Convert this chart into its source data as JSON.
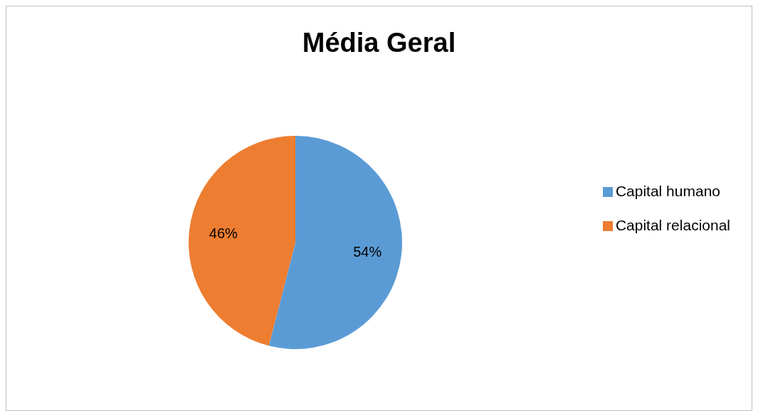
{
  "chart_data": {
    "type": "pie",
    "title": "Média Geral",
    "categories": [
      "Capital humano",
      "Capital relacional"
    ],
    "values": [
      54,
      46
    ],
    "colors": [
      "#5b9bd5",
      "#ed7d31"
    ],
    "value_labels": [
      "54%",
      "46%"
    ],
    "legend": "right"
  }
}
